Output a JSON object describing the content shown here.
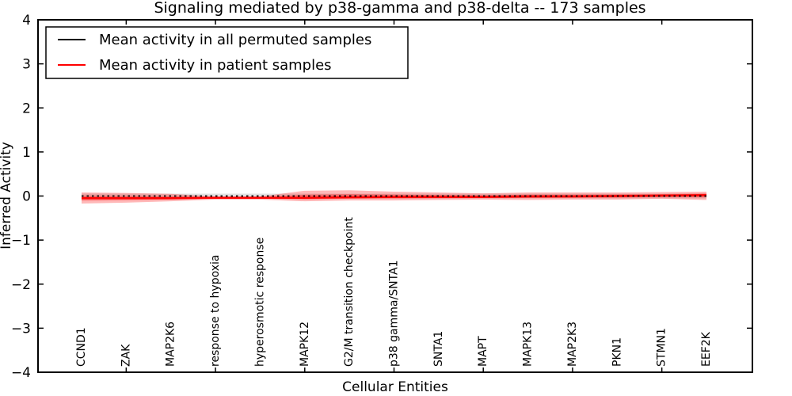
{
  "figure": {
    "title": "Signaling mediated by p38-gamma and p38-delta -- 173 samples",
    "xlabel": "Cellular Entities",
    "ylabel": "Inferred Activity",
    "background_color": "#ffffff",
    "axis_color": "#000000"
  },
  "legend": {
    "position": "upper left",
    "items": [
      {
        "label": "Mean activity in all permuted samples",
        "color": "#000000",
        "swatch": "line"
      },
      {
        "label": "Mean activity in patient samples",
        "color": "#ff0000",
        "swatch": "line"
      }
    ]
  },
  "chart_data": {
    "type": "line",
    "title": "Signaling mediated by p38-gamma and p38-delta -- 173 samples",
    "xlabel": "Cellular Entities",
    "ylabel": "Inferred Activity",
    "ylim": [
      -4,
      4
    ],
    "grid": false,
    "legend_position": "upper left",
    "y_ticks": [
      4,
      3,
      2,
      1,
      0,
      -1,
      -2,
      -3,
      -4
    ],
    "y_tick_labels": [
      "4",
      "3",
      "2",
      "1",
      "0",
      "−1",
      "−2",
      "−3",
      "−4"
    ],
    "x_tick_indices": [
      1,
      3,
      5,
      7,
      9,
      11,
      13
    ],
    "categories": [
      "CCND1",
      "ZAK",
      "MAP2K6",
      "response to hypoxia",
      "hyperosmotic response",
      "MAPK12",
      "G2/M transition checkpoint",
      "p38 gamma/SNTA1",
      "SNTA1",
      "MAPT",
      "MAPK13",
      "MAP2K3",
      "PKN1",
      "STMN1",
      "EEF2K"
    ],
    "series": [
      {
        "name": "Mean activity in all permuted samples",
        "color": "#000000",
        "style": "dashed",
        "values": [
          0,
          0,
          0,
          0,
          0,
          0,
          0,
          0,
          0,
          0,
          0,
          0,
          0,
          0,
          0
        ]
      },
      {
        "name": "Mean activity in patient samples",
        "color": "#ff0000",
        "style": "solid",
        "values": [
          -0.05,
          -0.05,
          -0.05,
          -0.04,
          -0.04,
          -0.04,
          -0.03,
          -0.02,
          -0.02,
          -0.02,
          -0.01,
          -0.01,
          0.0,
          0.01,
          0.02
        ]
      }
    ],
    "patient_band": {
      "color": "#ff0000",
      "upper": [
        0.08,
        0.07,
        0.05,
        -0.01,
        -0.01,
        0.12,
        0.13,
        0.1,
        0.08,
        0.06,
        0.08,
        0.08,
        0.08,
        0.09,
        0.1
      ],
      "lower": [
        -0.17,
        -0.15,
        -0.12,
        -0.08,
        -0.08,
        -0.12,
        -0.1,
        -0.1,
        -0.09,
        -0.08,
        -0.09,
        -0.08,
        -0.08,
        -0.06,
        -0.09
      ]
    },
    "permuted_band": {
      "color": "#888888",
      "half_width": 0.055
    }
  }
}
